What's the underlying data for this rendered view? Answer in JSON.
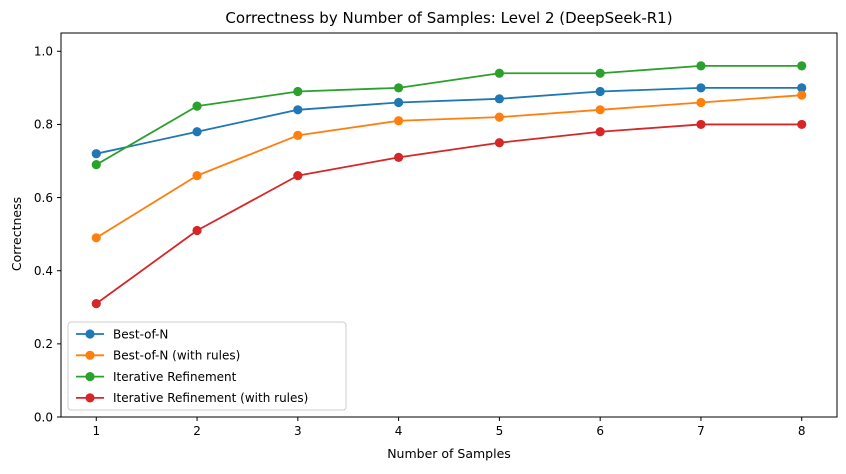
{
  "chart_data": {
    "type": "line",
    "title": "Correctness by Number of Samples: Level 2 (DeepSeek-R1)",
    "xlabel": "Number of Samples",
    "ylabel": "Correctness",
    "x": [
      1,
      2,
      3,
      4,
      5,
      6,
      7,
      8
    ],
    "xlim": [
      0.65,
      8.35
    ],
    "ylim": [
      0.0,
      1.05
    ],
    "x_ticks": [
      "1",
      "2",
      "3",
      "4",
      "5",
      "6",
      "7",
      "8"
    ],
    "y_ticks": [
      "0.0",
      "0.2",
      "0.4",
      "0.6",
      "0.8",
      "1.0"
    ],
    "grid": false,
    "legend_position": "lower-left",
    "marker": "circle",
    "series": [
      {
        "name": "Best-of-N",
        "color": "#1f77b4",
        "values": [
          0.72,
          0.78,
          0.84,
          0.86,
          0.87,
          0.89,
          0.9,
          0.9
        ]
      },
      {
        "name": "Best-of-N (with rules)",
        "color": "#ff7f0e",
        "values": [
          0.49,
          0.66,
          0.77,
          0.81,
          0.82,
          0.84,
          0.86,
          0.88
        ]
      },
      {
        "name": "Iterative Refinement",
        "color": "#2ca02c",
        "values": [
          0.69,
          0.85,
          0.89,
          0.9,
          0.94,
          0.94,
          0.96,
          0.96
        ]
      },
      {
        "name": "Iterative Refinement (with rules)",
        "color": "#d62728",
        "values": [
          0.31,
          0.51,
          0.66,
          0.71,
          0.75,
          0.78,
          0.8,
          0.8
        ]
      }
    ]
  }
}
